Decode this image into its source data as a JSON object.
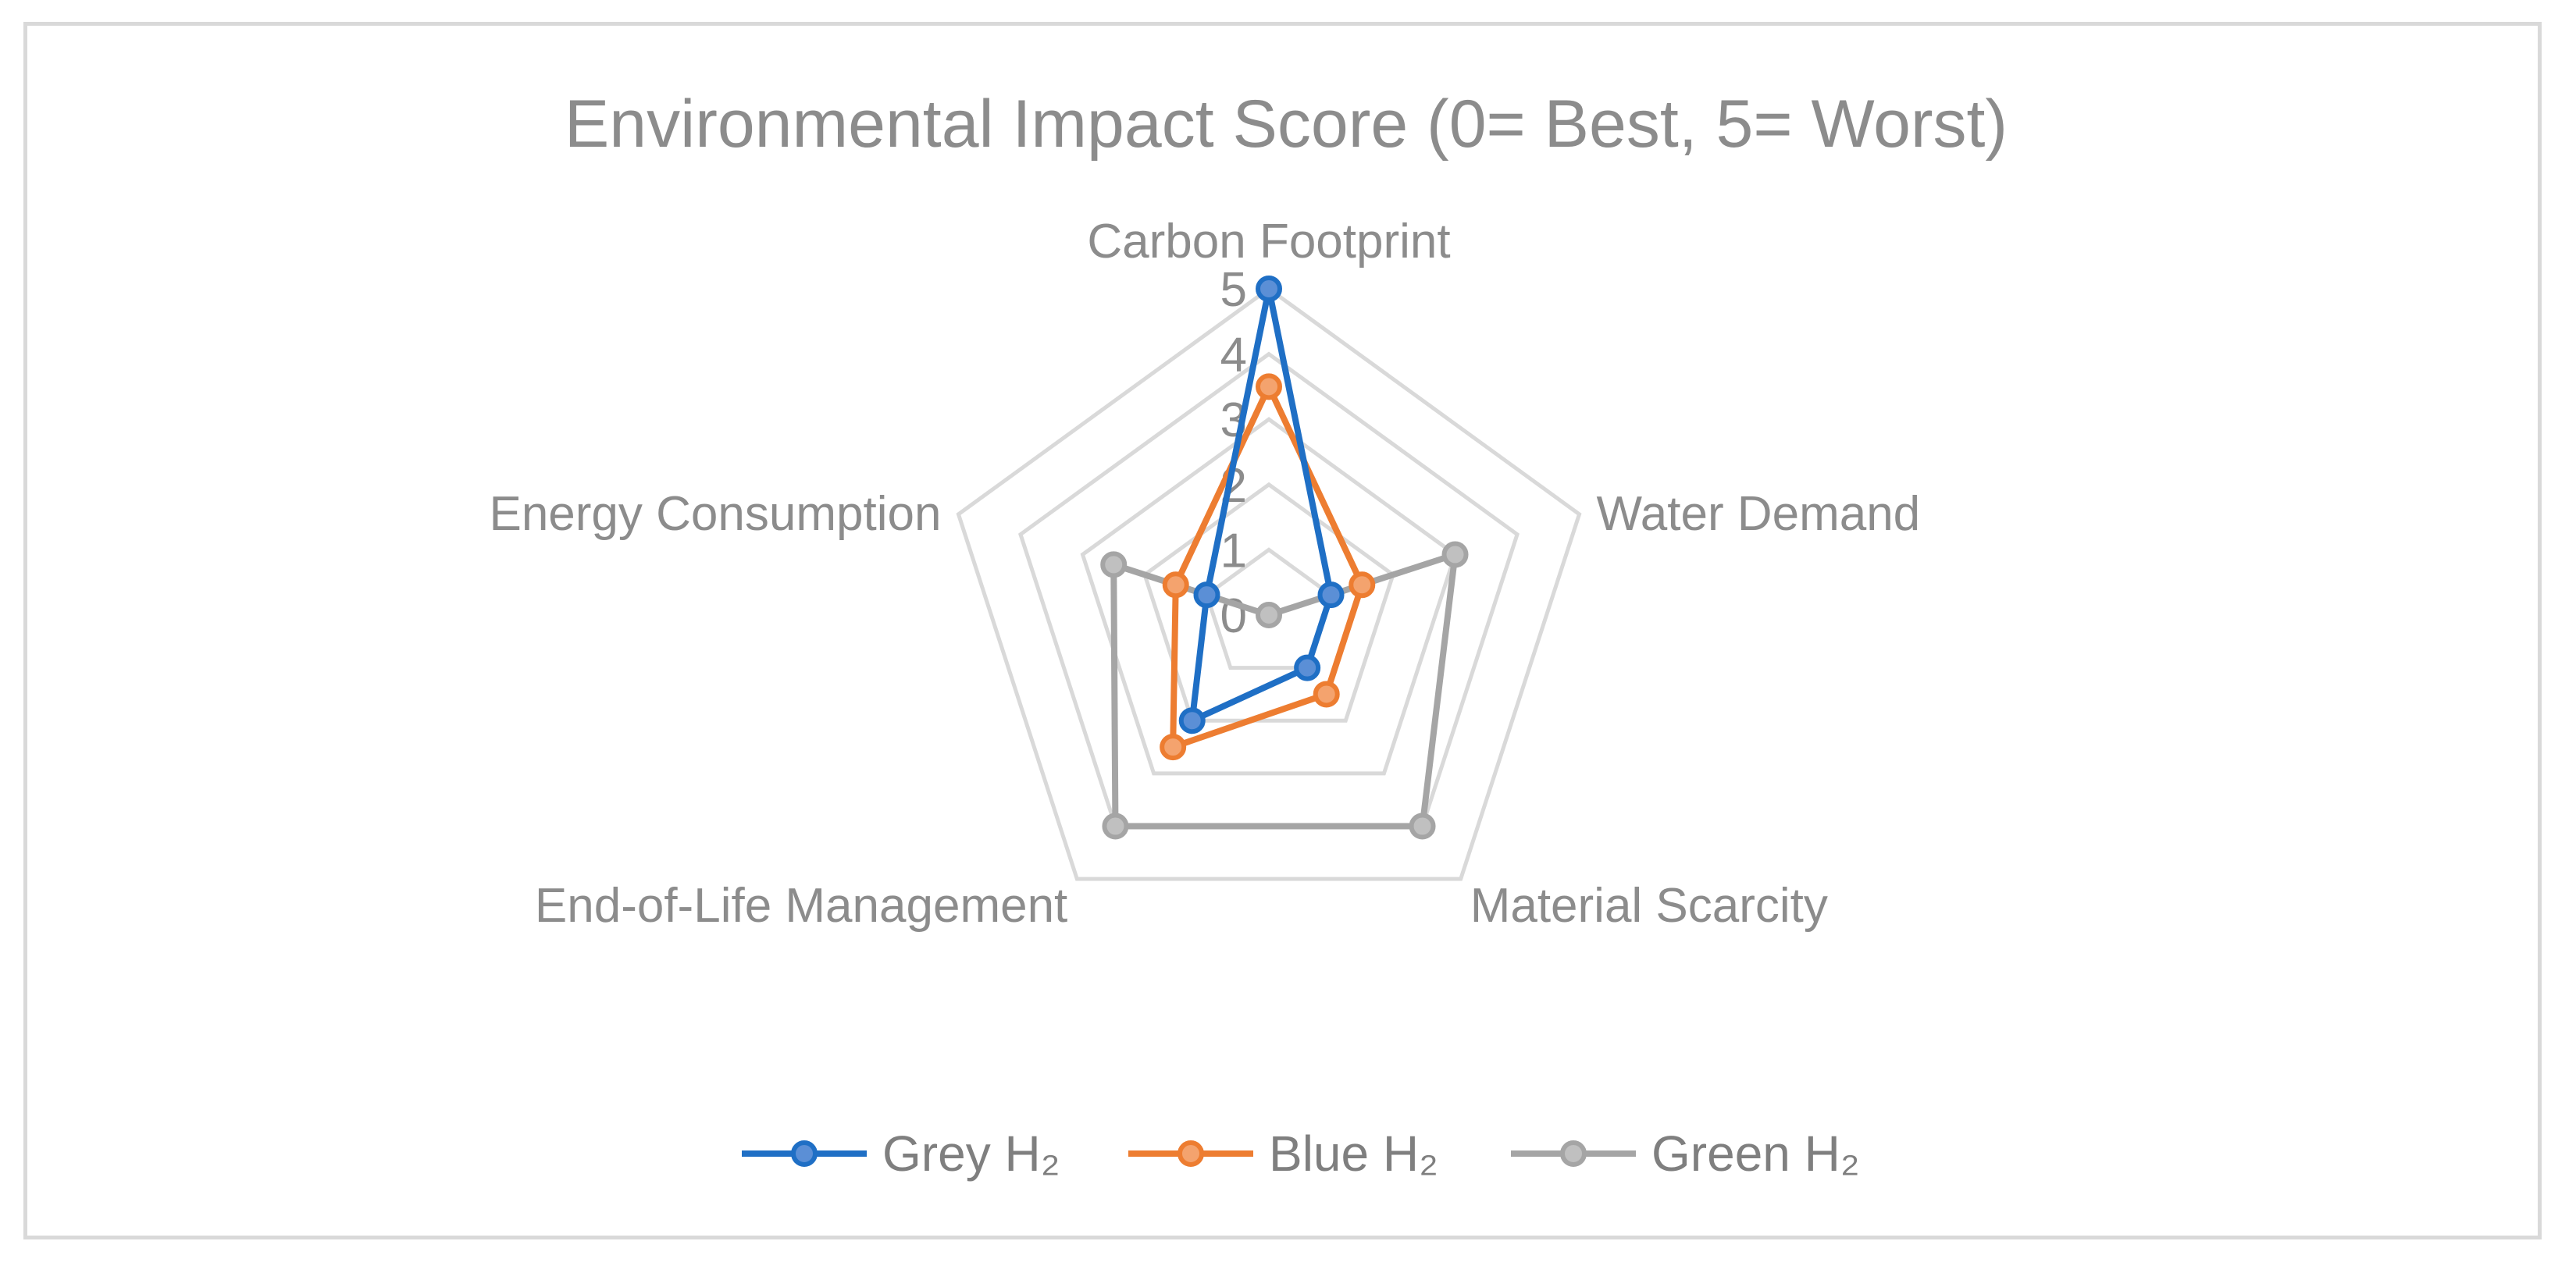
{
  "chart_data": {
    "type": "radar",
    "title": "Environmental Impact Score (0= Best, 5= Worst)",
    "axes": [
      "Carbon Footprint",
      "Water Demand",
      "Material Scarcity",
      "End-of-Life Management",
      "Energy Consumption"
    ],
    "rlim": [
      0,
      5
    ],
    "ticks": [
      "0",
      "1",
      "2",
      "3",
      "4",
      "5"
    ],
    "grid": true,
    "legend_position": "bottom",
    "series": [
      {
        "name": "Grey H₂",
        "values": [
          5,
          1,
          1,
          2,
          1
        ],
        "color": "#1f6fc5",
        "marker_fill": "#5b8fd6"
      },
      {
        "name": "Blue H₂",
        "values": [
          3.5,
          1.5,
          1.5,
          2.5,
          1.5
        ],
        "color": "#ed7d31",
        "marker_fill": "#f4a36e"
      },
      {
        "name": "Green H₂",
        "values": [
          0,
          3,
          4,
          4,
          2.5
        ],
        "color": "#a5a5a5",
        "marker_fill": "#c0c0c0"
      }
    ]
  }
}
